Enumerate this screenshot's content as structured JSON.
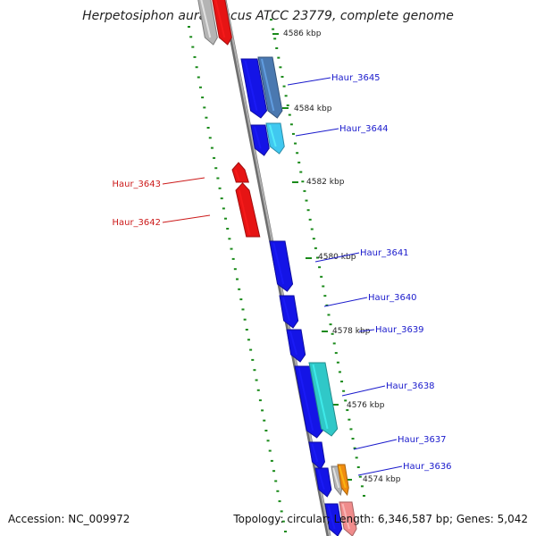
{
  "title": "Herpetosiphon aurantiacus ATCC 23779, complete genome",
  "footer": {
    "accession": "Accession: NC_009972",
    "summary": "Topology: circular; Length: 6,346,587 bp; Genes: 5,042"
  },
  "colors": {
    "backbone": "#8c8c8c",
    "tick": "#1a8a1a",
    "forward_gene": "#1414e6",
    "reverse_gene": "#e61414",
    "label_blue": "#1a1acc",
    "label_red": "#cc1a1a",
    "steel_blue": "#4a78b0",
    "light_blue": "#40c8f0",
    "cyan": "#30c8c8",
    "orange": "#f08c10",
    "grey": "#b4b4b4",
    "pink": "#f08c8c"
  },
  "kbp_labels": [
    "4586 kbp",
    "4584 kbp",
    "4582 kbp",
    "4580 kbp",
    "4578 kbp",
    "4576 kbp",
    "4574 kbp"
  ],
  "gene_labels": [
    {
      "text": "Haur_3645",
      "strand": "forward"
    },
    {
      "text": "Haur_3644",
      "strand": "forward"
    },
    {
      "text": "Haur_3643",
      "strand": "reverse"
    },
    {
      "text": "Haur_3642",
      "strand": "reverse"
    },
    {
      "text": "Haur_3641",
      "strand": "forward"
    },
    {
      "text": "Haur_3640",
      "strand": "forward"
    },
    {
      "text": "Haur_3639",
      "strand": "forward"
    },
    {
      "text": "Haur_3638",
      "strand": "forward"
    },
    {
      "text": "Haur_3637",
      "strand": "forward"
    },
    {
      "text": "Haur_3636",
      "strand": "forward"
    }
  ]
}
